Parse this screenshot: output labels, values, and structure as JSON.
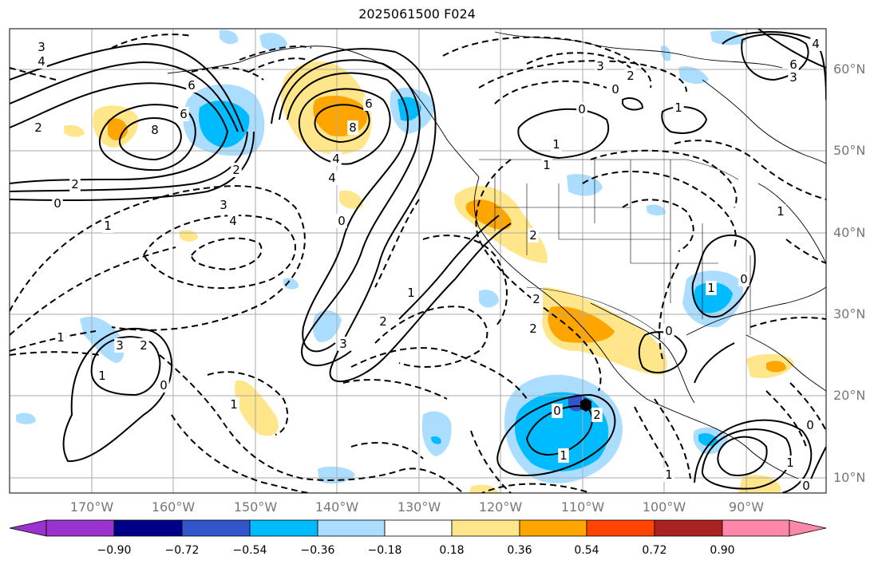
{
  "title": "2025061500 F024",
  "map": {
    "lon_labels": [
      "170°W",
      "160°W",
      "150°W",
      "140°W",
      "130°W",
      "120°W",
      "110°W",
      "100°W",
      "90°W"
    ],
    "lat_labels": [
      "60°N",
      "50°N",
      "40°N",
      "30°N",
      "20°N",
      "10°N"
    ],
    "contour_labels": [
      "3",
      "4",
      "6",
      "2",
      "8",
      "6",
      "2",
      "0",
      "1",
      "2",
      "3",
      "4",
      "6",
      "8",
      "4",
      "0",
      "1",
      "2",
      "3",
      "4",
      "3",
      "2",
      "0",
      "1",
      "0",
      "1",
      "2",
      "1",
      "3",
      "2",
      "0",
      "1",
      "0",
      "2",
      "1",
      "1",
      "2",
      "1",
      "0",
      "1",
      "0",
      "1",
      "1",
      "0",
      "0",
      "2",
      "3",
      "4",
      "6",
      "1"
    ]
  },
  "colorbar": {
    "ticks": [
      "−0.90",
      "−0.72",
      "−0.54",
      "−0.36",
      "−0.18",
      "0.18",
      "0.36",
      "0.54",
      "0.72",
      "0.90"
    ],
    "colors": [
      "#9933cc",
      "#000088",
      "#3355cc",
      "#00bbff",
      "#aaddff",
      "#ffffff",
      "#ffe68a",
      "#ffa500",
      "#ff4400",
      "#aa2222",
      "#ff88aa"
    ]
  }
}
